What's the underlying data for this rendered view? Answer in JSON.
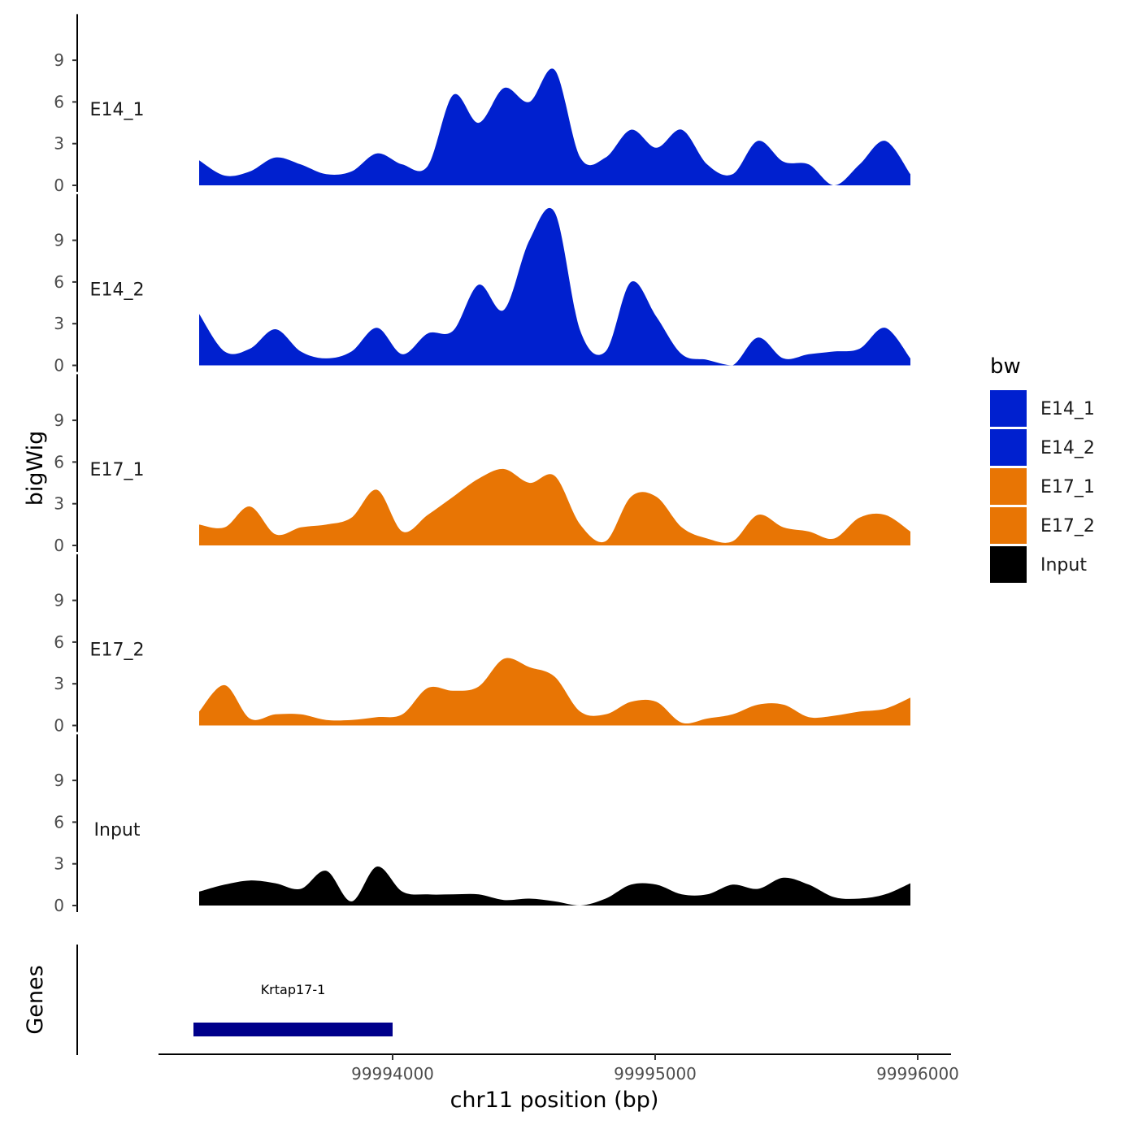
{
  "chart_data": {
    "type": "area",
    "title": "",
    "ylabel": "bigWig",
    "xlabel": "chr11 position (bp)",
    "xlim": [
      99993200,
      99996000
    ],
    "x_ticks": [
      99994000,
      99995000,
      99996000
    ],
    "x_tick_labels": [
      "99994000",
      "99995000",
      "99996000"
    ],
    "ylim": [
      0,
      11.5
    ],
    "y_ticks": [
      0,
      3,
      6,
      9
    ],
    "y_tick_labels": [
      "0",
      "3",
      "6",
      "9"
    ],
    "x": [
      99993200,
      99993300,
      99993400,
      99993500,
      99993600,
      99993700,
      99993800,
      99993900,
      99994000,
      99994100,
      99994200,
      99994300,
      99994400,
      99994500,
      99994600,
      99994700,
      99994800,
      99994900,
      99995000,
      99995100,
      99995200,
      99995300,
      99995400,
      99995500,
      99995600,
      99995700,
      99995800,
      99995900,
      99996000
    ],
    "series": [
      {
        "name": "E14_1",
        "track_label": "E14_1",
        "color": "#0020CF",
        "values": [
          1.8,
          0.7,
          1.0,
          2.0,
          1.5,
          0.8,
          1.0,
          2.3,
          1.5,
          1.4,
          6.5,
          4.5,
          7.0,
          6.0,
          8.3,
          2.0,
          2.0,
          4.0,
          2.7,
          4.0,
          1.5,
          0.8,
          3.2,
          1.7,
          1.5,
          0.0,
          1.5,
          3.2,
          0.8
        ]
      },
      {
        "name": "E14_2",
        "track_label": "E14_2",
        "color": "#0020CF",
        "values": [
          3.7,
          1.0,
          1.2,
          2.6,
          1.0,
          0.5,
          1.0,
          2.7,
          0.8,
          2.3,
          2.5,
          5.8,
          4.0,
          9.0,
          11.0,
          2.5,
          1.0,
          6.0,
          3.5,
          0.8,
          0.4,
          0.0,
          2.0,
          0.5,
          0.8,
          1.0,
          1.2,
          2.7,
          0.5
        ]
      },
      {
        "name": "E17_1",
        "track_label": "E17_1",
        "color": "#E87504",
        "values": [
          1.5,
          1.3,
          2.8,
          0.8,
          1.3,
          1.5,
          2.0,
          4.0,
          1.0,
          2.2,
          3.5,
          4.8,
          5.5,
          4.5,
          5.0,
          1.5,
          0.3,
          3.5,
          3.5,
          1.3,
          0.5,
          0.3,
          2.2,
          1.3,
          1.0,
          0.5,
          2.0,
          2.2,
          1.0
        ]
      },
      {
        "name": "E17_2",
        "track_label": "E17_2",
        "color": "#E87504",
        "values": [
          1.0,
          2.9,
          0.5,
          0.8,
          0.8,
          0.4,
          0.4,
          0.6,
          0.8,
          2.7,
          2.5,
          2.8,
          4.8,
          4.2,
          3.5,
          1.0,
          0.8,
          1.7,
          1.7,
          0.2,
          0.5,
          0.8,
          1.5,
          1.5,
          0.6,
          0.7,
          1.0,
          1.2,
          2.0
        ]
      },
      {
        "name": "Input",
        "track_label": "Input",
        "color": "#000000",
        "values": [
          1.0,
          1.5,
          1.8,
          1.6,
          1.2,
          2.5,
          0.3,
          2.8,
          1.0,
          0.8,
          0.8,
          0.8,
          0.4,
          0.5,
          0.3,
          0.0,
          0.5,
          1.5,
          1.5,
          0.8,
          0.8,
          1.5,
          1.2,
          2.0,
          1.5,
          0.6,
          0.5,
          0.8,
          1.6
        ]
      }
    ],
    "gene_track": {
      "label": "Genes",
      "genes": [
        {
          "name": "Krtap17-1",
          "start": 99993200,
          "end": 99994000,
          "color": "#00008B"
        }
      ]
    },
    "legend": {
      "title": "bw",
      "position": "right",
      "entries": [
        {
          "label": "E14_1",
          "color": "#0020CF"
        },
        {
          "label": "E14_2",
          "color": "#0020CF"
        },
        {
          "label": "E17_1",
          "color": "#E87504"
        },
        {
          "label": "E17_2",
          "color": "#E87504"
        },
        {
          "label": "Input",
          "color": "#000000"
        }
      ]
    }
  }
}
